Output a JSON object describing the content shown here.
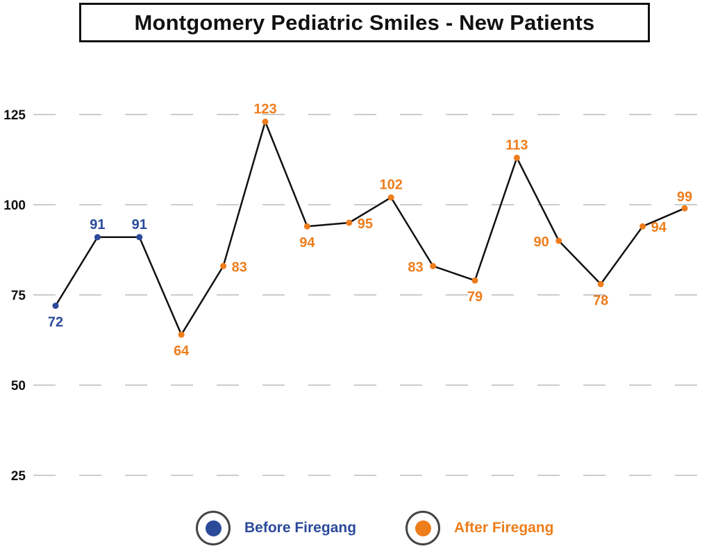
{
  "chart_data": {
    "type": "line",
    "title": "Montgomery Pediatric Smiles - New Patients",
    "xlabel": "",
    "ylabel": "",
    "ylim": [
      25,
      125
    ],
    "yticks": [
      25,
      50,
      75,
      100,
      125
    ],
    "grid": true,
    "legend_position": "bottom",
    "series": [
      {
        "name": "Before Firegang",
        "color": "#2b4a9a",
        "values": [
          72,
          91,
          91
        ]
      },
      {
        "name": "After Firegang",
        "color": "#ee7d1c",
        "values": [
          64,
          83,
          123,
          94,
          95,
          102,
          83,
          79,
          113,
          90,
          78,
          94,
          99
        ]
      }
    ],
    "line_color": "#111111"
  }
}
